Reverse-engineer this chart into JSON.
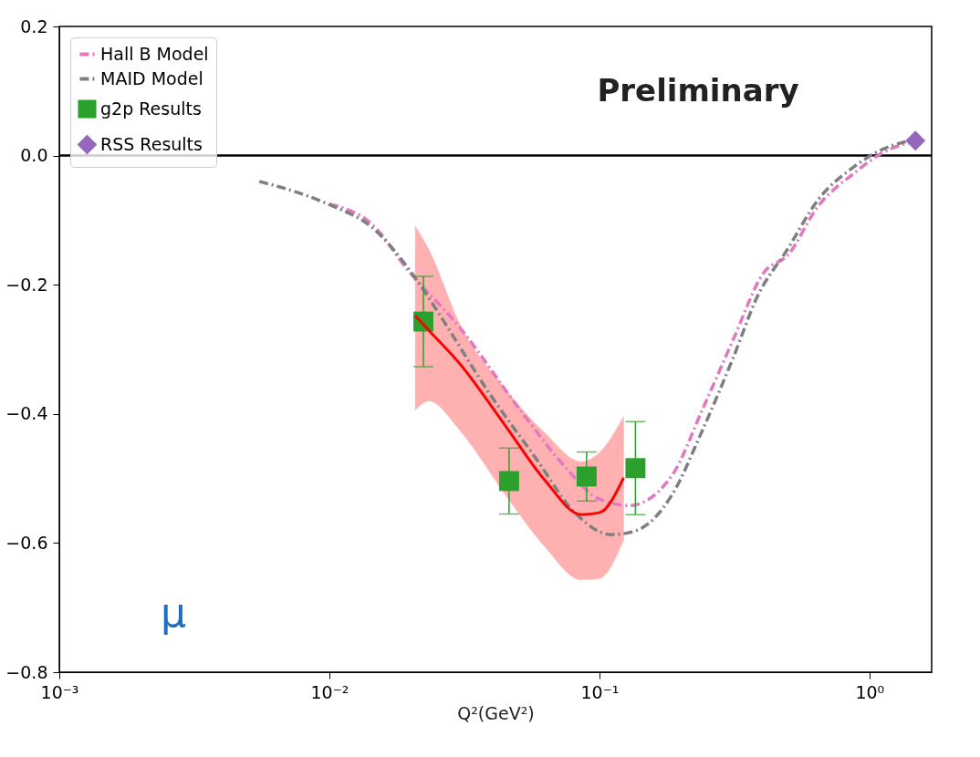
{
  "chart_data": {
    "type": "line",
    "xlabel": "Q²(GeV²)",
    "log": "x",
    "xlim": [
      0.001,
      1.7
    ],
    "ylim": [
      -0.8,
      0.2
    ],
    "xticks": [
      {
        "value": 0.001,
        "label": "10⁻³"
      },
      {
        "value": 0.01,
        "label": "10⁻²"
      },
      {
        "value": 0.1,
        "label": "10⁻¹"
      },
      {
        "value": 1,
        "label": "10⁰"
      }
    ],
    "yticks": [
      {
        "value": -0.8,
        "label": "−0.8"
      },
      {
        "value": -0.6,
        "label": "−0.6"
      },
      {
        "value": -0.4,
        "label": "−0.4"
      },
      {
        "value": -0.2,
        "label": "−0.2"
      },
      {
        "value": 0,
        "label": "0.0"
      },
      {
        "value": 0.2,
        "label": "0.2"
      }
    ],
    "grid": false,
    "legend": "top left",
    "annotations": [
      "Preliminary",
      "μ"
    ],
    "ref_lines": [
      {
        "axis": "y",
        "value": 0,
        "color": "#000000"
      }
    ],
    "series": [
      {
        "name": "Hall B Model",
        "type": "line",
        "color": "#e377c2",
        "line_style": "dashdot",
        "marker": "none",
        "x": [
          0.01,
          0.01436,
          0.0196,
          0.0305,
          0.0509,
          0.075,
          0.0977,
          0.129,
          0.186,
          0.2404,
          0.313,
          0.405,
          0.499,
          0.644,
          0.879,
          1.137,
          1.4
        ],
        "values": [
          -0.075,
          -0.106,
          -0.178,
          -0.267,
          -0.394,
          -0.483,
          -0.53,
          -0.542,
          -0.495,
          -0.394,
          -0.285,
          -0.182,
          -0.154,
          -0.079,
          -0.027,
          0.006,
          0.02
        ]
      },
      {
        "name": "MAID Model",
        "type": "line",
        "color": "#7f7f7f",
        "line_style": "dashdot",
        "marker": "none",
        "x": [
          0.0055,
          0.0066,
          0.01,
          0.01436,
          0.0211,
          0.0253,
          0.0394,
          0.058,
          0.0811,
          0.1107,
          0.1365,
          0.186,
          0.2404,
          0.313,
          0.383,
          0.499,
          0.644,
          0.879,
          1.137,
          1.4
        ],
        "values": [
          -0.04,
          -0.049,
          -0.076,
          -0.111,
          -0.193,
          -0.243,
          -0.37,
          -0.468,
          -0.553,
          -0.587,
          -0.581,
          -0.525,
          -0.426,
          -0.313,
          -0.22,
          -0.144,
          -0.069,
          -0.017,
          0.011,
          0.023
        ]
      },
      {
        "name": "g2p Results",
        "type": "scatter",
        "color": "#2ca02c",
        "marker": "square",
        "x": [
          0.0223,
          0.0463,
          0.0897,
          0.136
        ],
        "values": [
          -0.257,
          -0.504,
          -0.497,
          -0.484
        ],
        "errors": [
          0.07,
          0.051,
          0.038,
          0.072
        ]
      },
      {
        "name": "RSS Results",
        "type": "scatter",
        "color": "#9467bd",
        "marker": "diamond",
        "x": [
          1.48
        ],
        "values": [
          0.023
        ]
      },
      {
        "type": "line",
        "color": "#ff0000",
        "line_style": "solid",
        "marker": "none",
        "x": [
          0.0208,
          0.0234,
          0.0305,
          0.0448,
          0.0626,
          0.0857,
          0.1,
          0.123
        ],
        "values": [
          -0.248,
          -0.271,
          -0.323,
          -0.418,
          -0.502,
          -0.556,
          -0.553,
          -0.499
        ],
        "lower": [
          -0.394,
          -0.38,
          -0.426,
          -0.525,
          -0.605,
          -0.657,
          -0.655,
          -0.595
        ],
        "upper": [
          -0.109,
          -0.146,
          -0.262,
          -0.361,
          -0.429,
          -0.474,
          -0.46,
          -0.404
        ]
      }
    ]
  }
}
